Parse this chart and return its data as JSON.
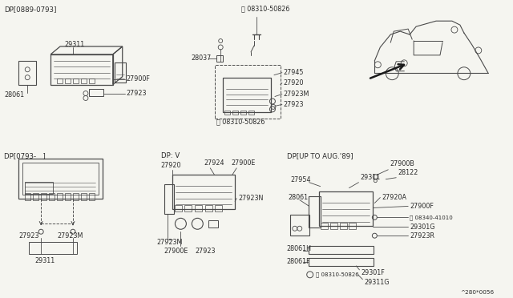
{
  "bg_color": "#f5f5f0",
  "fig_width": 6.4,
  "fig_height": 3.72,
  "dpi": 100,
  "lc": "#4a4a4a",
  "tc": "#2a2a2a",
  "sections": {
    "dp1_label": "DP[0889-0793]",
    "dp2_label": "DP[0793-   ]",
    "dp3_label": "DP: V",
    "dp4_label": "DP[UP TO AUG.'89]",
    "screw_08310": "Ⓢ 08310-50826",
    "screw_08340": "Ⓢ 08340-41010",
    "ref": "^280*0056"
  },
  "parts": {
    "28061": "28061",
    "29311": "29311",
    "27900F": "27900F",
    "27923": "27923",
    "28037": "28037",
    "27945": "27945",
    "27920": "27920",
    "27923M": "27923M",
    "27924": "27924",
    "27900E": "27900E",
    "27923N": "27923N",
    "27900B": "27900B",
    "28122": "28122",
    "27954": "27954",
    "27920A": "27920A",
    "29301G": "29301G",
    "27923R": "27923R",
    "28061H": "28061H",
    "28061F": "28061F",
    "29301F": "29301F",
    "29311G": "29311G"
  }
}
